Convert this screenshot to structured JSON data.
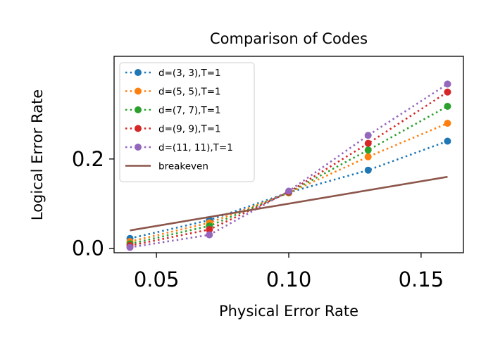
{
  "chart_data": {
    "type": "line",
    "title": "Comparison of Codes",
    "xlabel": "Physical Error Rate",
    "ylabel": "Logical Error Rate",
    "xlim": [
      0.034,
      0.166
    ],
    "ylim": [
      -0.01,
      0.43
    ],
    "xticks": [
      0.05,
      0.1,
      0.15
    ],
    "xtick_labels": [
      "0.05",
      "0.10",
      "0.15"
    ],
    "yticks": [
      0.0,
      0.2
    ],
    "ytick_labels": [
      "0.0",
      "0.2"
    ],
    "legend_position": "upper-left",
    "grid": false,
    "x": [
      0.04,
      0.07,
      0.1,
      0.13,
      0.16
    ],
    "series": [
      {
        "name": "d=(3, 3),T=1",
        "color": "#1f77b4",
        "style": "dotted-marker",
        "values": [
          0.022,
          0.063,
          0.125,
          0.175,
          0.24
        ]
      },
      {
        "name": "d=(5, 5),T=1",
        "color": "#ff7f0e",
        "style": "dotted-marker",
        "values": [
          0.015,
          0.057,
          0.124,
          0.205,
          0.28
        ]
      },
      {
        "name": "d=(7, 7),T=1",
        "color": "#2ca02c",
        "style": "dotted-marker",
        "values": [
          0.01,
          0.05,
          0.125,
          0.22,
          0.318
        ]
      },
      {
        "name": "d=(9, 9),T=1",
        "color": "#d62728",
        "style": "dotted-marker",
        "values": [
          0.006,
          0.042,
          0.126,
          0.235,
          0.35
        ]
      },
      {
        "name": "d=(11, 11),T=1",
        "color": "#9467bd",
        "style": "dotted-marker",
        "values": [
          0.002,
          0.03,
          0.128,
          0.253,
          0.368
        ]
      },
      {
        "name": "breakeven",
        "color": "#8c564b",
        "style": "solid",
        "values": [
          0.04,
          0.07,
          0.1,
          0.13,
          0.16
        ]
      }
    ]
  }
}
